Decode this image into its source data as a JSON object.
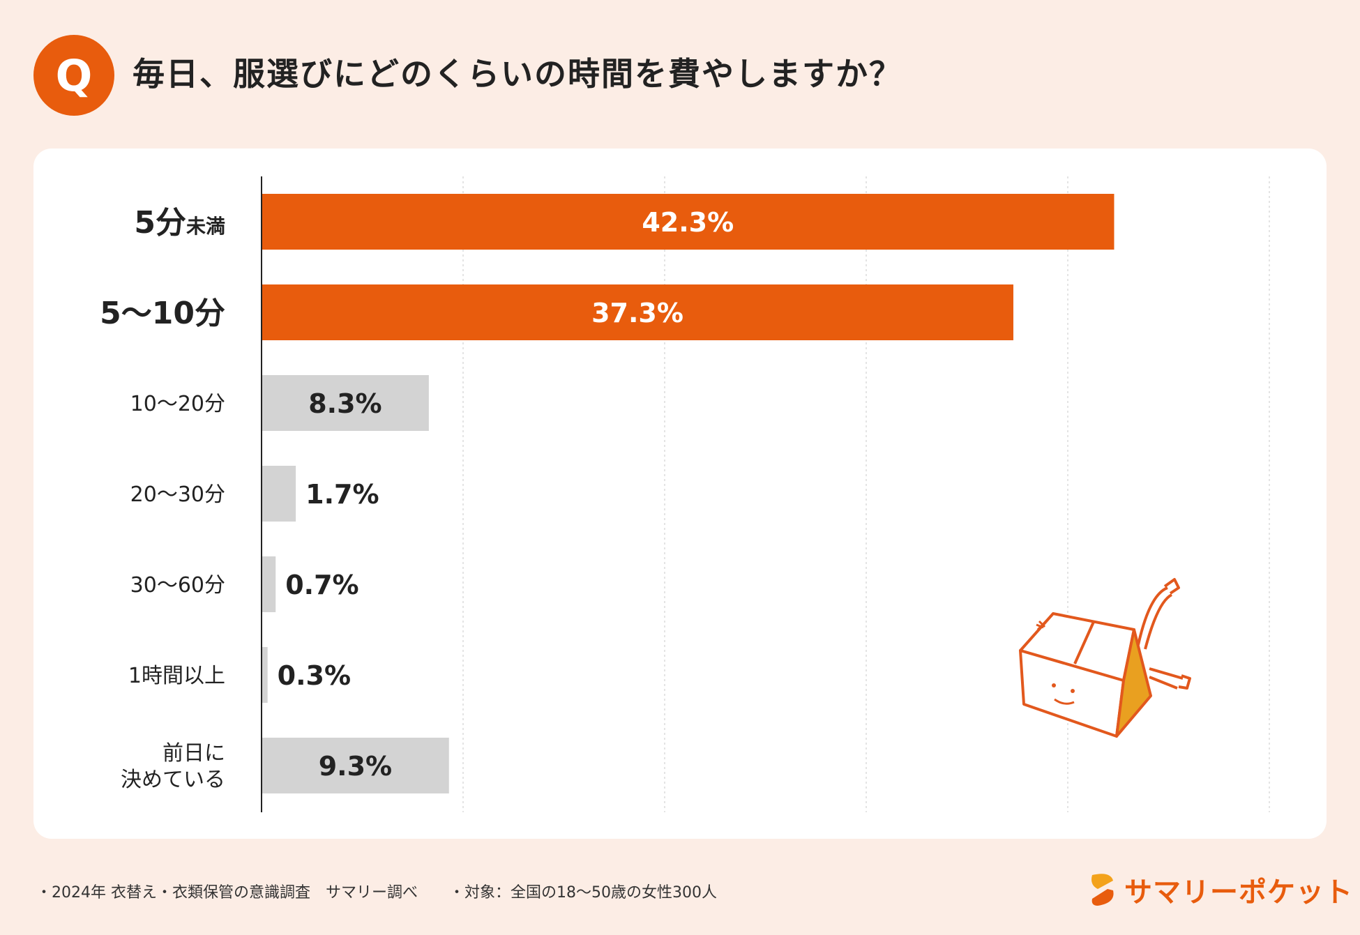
{
  "header": {
    "badge": "Q",
    "question": "毎日、服選びにどのくらいの時間を費やしますか？"
  },
  "chart_data": {
    "type": "bar",
    "orientation": "horizontal",
    "title": "毎日、服選びにどのくらいの時間を費やしますか？",
    "unit": "%",
    "xlim": [
      0,
      50
    ],
    "grid": true,
    "categories": [
      {
        "label": "5分",
        "suffix": "未満",
        "highlight": true
      },
      {
        "label": "5〜10分",
        "suffix": "",
        "highlight": true
      },
      {
        "label": "10〜20分",
        "suffix": "",
        "highlight": false
      },
      {
        "label": "20〜30分",
        "suffix": "",
        "highlight": false
      },
      {
        "label": "30〜60分",
        "suffix": "",
        "highlight": false
      },
      {
        "label": "1時間以上",
        "suffix": "",
        "highlight": false
      },
      {
        "label": "前日に\n決めている",
        "suffix": "",
        "highlight": false
      }
    ],
    "values": [
      42.3,
      37.3,
      8.3,
      1.7,
      0.7,
      0.3,
      9.3
    ],
    "value_labels": [
      "42.3%",
      "37.3%",
      "8.3%",
      "1.7%",
      "0.7%",
      "0.3%",
      "9.3%"
    ],
    "colors": {
      "highlight": "#e85c0d",
      "normal": "#d3d3d3",
      "accent": "#e85c0d"
    }
  },
  "footer": {
    "source": "・2024年 衣替え・衣類保管の意識調査　サマリー調べ",
    "target": "・対象：全国の18〜50歳の女性300人"
  },
  "logo": {
    "text": "サマリーポケット"
  }
}
